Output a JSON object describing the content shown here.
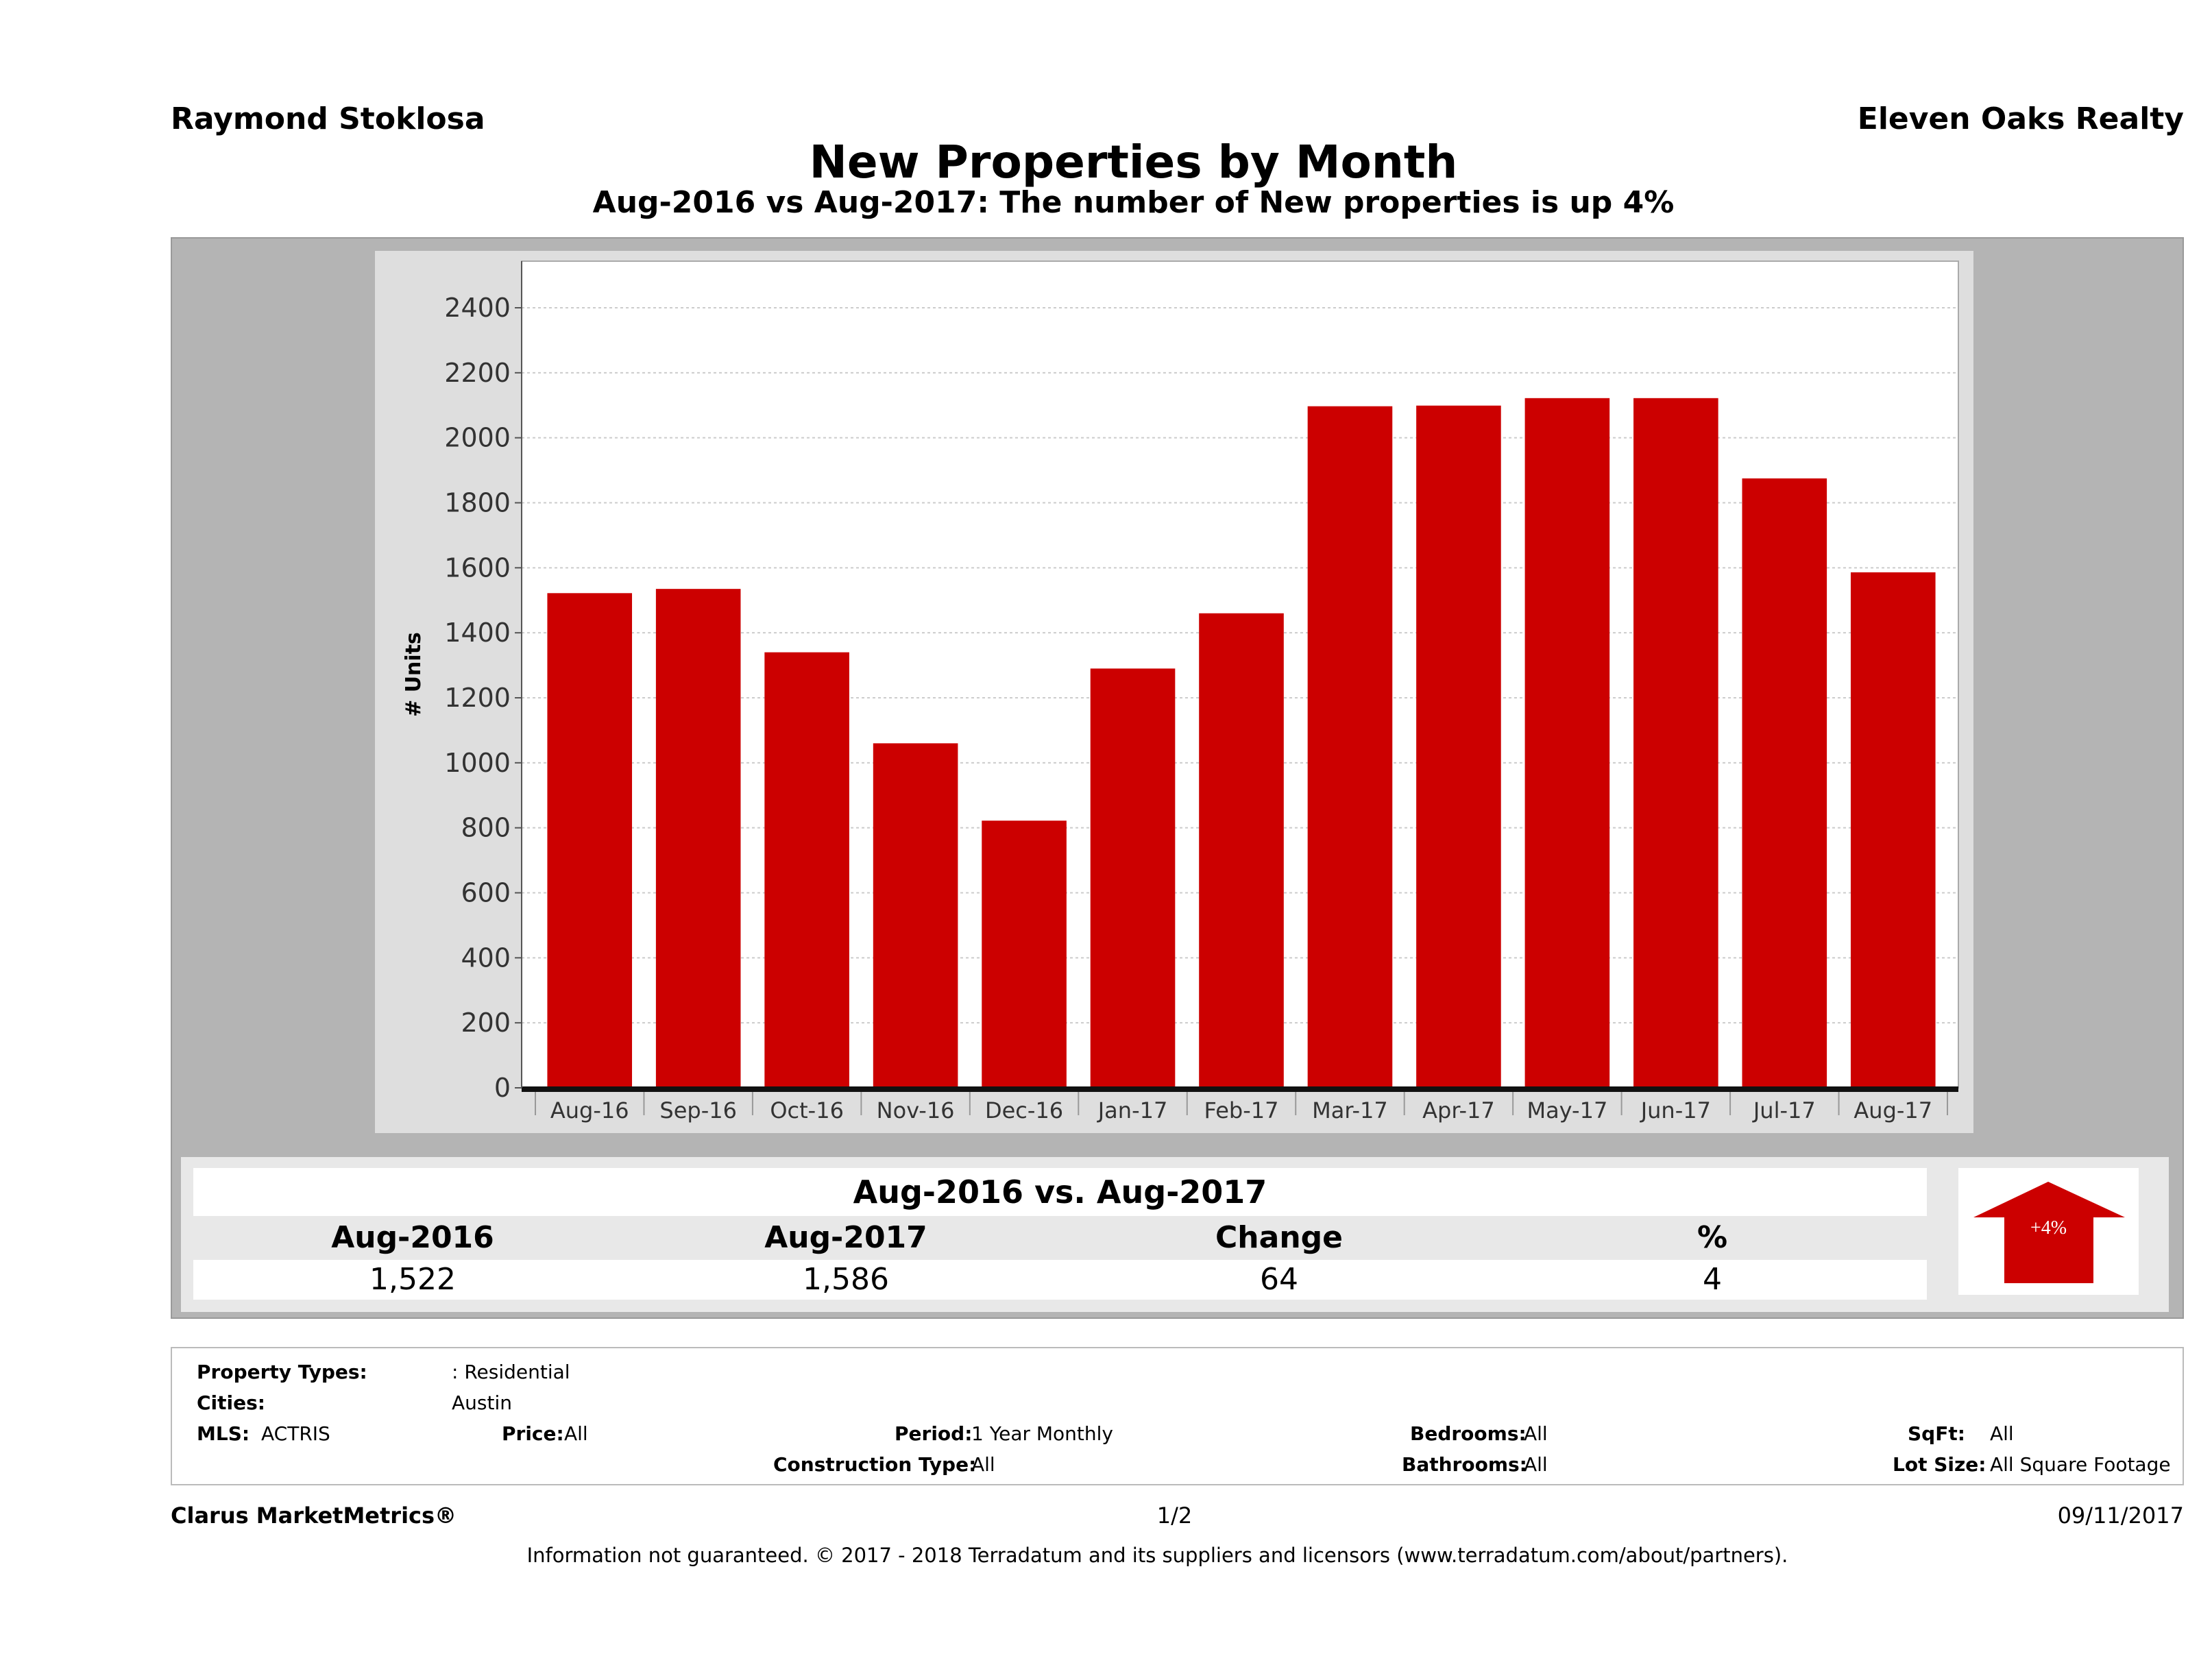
{
  "header": {
    "agent": "Raymond Stoklosa",
    "company": "Eleven Oaks Realty"
  },
  "title": "New Properties by Month",
  "subtitle": "Aug-2016 vs Aug-2017: The number of New  properties is up 4%",
  "chart_data": {
    "type": "bar",
    "title": "New Properties by Month",
    "ylabel": "# Units",
    "xlabel": "",
    "ylim": [
      0,
      2500
    ],
    "yticks": [
      0,
      200,
      400,
      600,
      800,
      1000,
      1200,
      1400,
      1600,
      1800,
      2000,
      2200,
      2400
    ],
    "grid": true,
    "categories": [
      "Aug-16",
      "Sep-16",
      "Oct-16",
      "Nov-16",
      "Dec-16",
      "Jan-17",
      "Feb-17",
      "Mar-17",
      "Apr-17",
      "May-17",
      "Jun-17",
      "Jul-17",
      "Aug-17"
    ],
    "values": [
      1522,
      1535,
      1340,
      1060,
      822,
      1290,
      1460,
      2097,
      2099,
      2122,
      2122,
      1875,
      1586
    ],
    "color": "#cc0000"
  },
  "comparison": {
    "heading": "Aug-2016 vs. Aug-2017",
    "columns": [
      "Aug-2016",
      "Aug-2017",
      "Change",
      "%"
    ],
    "values": [
      "1,522",
      "1,586",
      "64",
      "4"
    ],
    "badge": "+4%",
    "badge_icon": "up-arrow-icon"
  },
  "filters": {
    "property_types_label": "Property Types:",
    "property_types": ": Residential",
    "cities_label": "Cities:",
    "cities": "Austin",
    "mls_label": "MLS:",
    "mls": "ACTRIS",
    "price_label": "Price:",
    "price": "All",
    "period_label": "Period:",
    "period": "1 Year Monthly",
    "construction_label": "Construction Type:",
    "construction": "All",
    "bedrooms_label": "Bedrooms:",
    "bedrooms": "All",
    "bathrooms_label": "Bathrooms:",
    "bathrooms": "All",
    "sqft_label": "SqFt:",
    "sqft": "All",
    "lot_label": "Lot Size:",
    "lot": "All Square Footage"
  },
  "footer": {
    "brand": "Clarus MarketMetrics®",
    "page": "1/2",
    "date": "09/11/2017",
    "disclaimer": "Information not guaranteed. © 2017 - 2018 Terradatum and its suppliers and licensors (www.terradatum.com/about/partners)."
  }
}
